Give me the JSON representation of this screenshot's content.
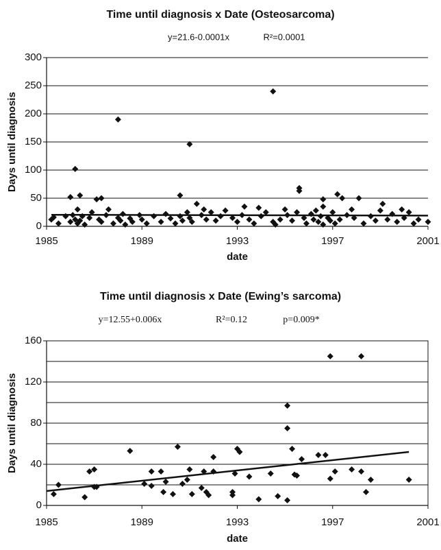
{
  "chart_data": [
    {
      "type": "scatter",
      "title": "Time until diagnosis x Date (Osteosarcoma)",
      "annotations": [
        "y=21.6-0.0001x",
        "R²=0.0001"
      ],
      "xlabel": "date",
      "ylabel": "Days until diagnosis",
      "xlim": [
        1985,
        2001
      ],
      "xticks": [
        1985,
        1989,
        1993,
        1997,
        2001
      ],
      "ylim": [
        0,
        300
      ],
      "yticks": [
        0,
        50,
        100,
        150,
        200,
        250,
        300
      ],
      "grid_lines": [
        50,
        100,
        150,
        200,
        250,
        300
      ],
      "frame": false,
      "color": "#111111",
      "points": {
        "x": [
          1985.2,
          1985.3,
          1985.5,
          1985.8,
          1986.0,
          1986.0,
          1986.1,
          1986.2,
          1986.3,
          1986.3,
          1986.4,
          1986.5,
          1986.6,
          1986.8,
          1986.9,
          1987.1,
          1987.2,
          1987.3,
          1987.5,
          1987.6,
          1987.8,
          1988.0,
          1988.1,
          1988.2,
          1988.3,
          1988.5,
          1988.6,
          1988.9,
          1989.0,
          1989.2,
          1989.5,
          1989.8,
          1990.0,
          1990.2,
          1990.4,
          1990.6,
          1990.7,
          1990.9,
          1991.0,
          1991.1,
          1991.3,
          1991.5,
          1991.6,
          1991.7,
          1991.9,
          1992.1,
          1992.3,
          1992.5,
          1992.8,
          1993.0,
          1993.2,
          1993.3,
          1993.5,
          1993.7,
          1993.9,
          1994.0,
          1994.2,
          1994.5,
          1994.6,
          1994.8,
          1995.0,
          1995.1,
          1995.3,
          1995.5,
          1995.6,
          1995.6,
          1995.8,
          1995.9,
          1996.1,
          1996.2,
          1996.3,
          1996.4,
          1996.5,
          1996.6,
          1996.6,
          1996.8,
          1996.9,
          1997.0,
          1997.1,
          1997.2,
          1997.3,
          1997.4,
          1997.6,
          1997.8,
          1997.9,
          1998.1,
          1998.3,
          1998.6,
          1998.8,
          1999.0,
          1999.1,
          1999.3,
          1999.5,
          1999.7,
          1999.9,
          2000.0,
          2000.2,
          2000.4,
          2000.6,
          2001.0,
          1986.2,
          1988.0,
          1991.0,
          1994.5,
          1986.4,
          1990.6,
          1987.3,
          1996.6
        ],
        "y": [
          12,
          16,
          5,
          18,
          52,
          8,
          20,
          12,
          30,
          5,
          10,
          18,
          3,
          15,
          25,
          48,
          12,
          8,
          20,
          30,
          5,
          15,
          10,
          22,
          3,
          14,
          8,
          20,
          12,
          5,
          18,
          8,
          22,
          14,
          5,
          18,
          10,
          25,
          15,
          8,
          40,
          20,
          30,
          12,
          25,
          10,
          18,
          28,
          15,
          8,
          20,
          35,
          12,
          5,
          33,
          18,
          25,
          8,
          3,
          12,
          30,
          20,
          10,
          25,
          68,
          63,
          15,
          5,
          22,
          12,
          28,
          8,
          18,
          35,
          3,
          15,
          10,
          25,
          5,
          57,
          12,
          50,
          20,
          30,
          15,
          50,
          5,
          18,
          10,
          28,
          40,
          12,
          22,
          8,
          30,
          15,
          25,
          5,
          12,
          8,
          102,
          190,
          146,
          240,
          55,
          55,
          50,
          48
        ]
      },
      "trend": {
        "x": [
          1985.2,
          2001.0
        ],
        "y": [
          20.5,
          19
        ]
      }
    },
    {
      "type": "scatter",
      "title": "Time until diagnosis x Date (Ewing’s sarcoma)",
      "annotations": [
        "y=12.55+0.006x",
        "R²=0.12",
        "p=0.009*"
      ],
      "xlabel": "date",
      "ylabel": "Days until diagnosis",
      "xlim": [
        1985,
        2001
      ],
      "xticks": [
        1985,
        1989,
        1993,
        1997,
        2001
      ],
      "ylim": [
        0,
        160
      ],
      "yticks": [
        0,
        40,
        80,
        120,
        160
      ],
      "grid_lines": [
        20,
        40,
        60,
        80,
        100,
        120,
        140
      ],
      "frame": true,
      "color": "#111111",
      "points": {
        "x": [
          1985.3,
          1985.5,
          1986.6,
          1986.8,
          1987.0,
          1987.0,
          1987.1,
          1988.5,
          1989.1,
          1989.4,
          1989.4,
          1989.8,
          1989.9,
          1990.0,
          1990.3,
          1990.5,
          1990.7,
          1990.9,
          1991.0,
          1991.1,
          1991.5,
          1991.6,
          1991.7,
          1991.8,
          1992.0,
          1992.0,
          1992.8,
          1992.9,
          1993.0,
          1993.1,
          1992.8,
          1993.5,
          1993.9,
          1994.4,
          1994.7,
          1995.1,
          1995.1,
          1995.1,
          1995.3,
          1995.4,
          1995.5,
          1995.7,
          1996.4,
          1996.7,
          1996.9,
          1996.9,
          1997.1,
          1997.8,
          1998.2,
          1998.2,
          1998.4,
          1998.6,
          2000.2
        ],
        "y": [
          11,
          20,
          8,
          33,
          35,
          18,
          18,
          53,
          21,
          19,
          33,
          33,
          13,
          23,
          11,
          57,
          21,
          25,
          35,
          11,
          17,
          33,
          13,
          10,
          33,
          47,
          13,
          31,
          55,
          52,
          10,
          28,
          6,
          31,
          9,
          97,
          75,
          5,
          55,
          30,
          29,
          45,
          49,
          49,
          145,
          26,
          33,
          35,
          145,
          33,
          13,
          25,
          25
        ]
      },
      "trend": {
        "x": [
          1985.0,
          2000.2
        ],
        "y": [
          14,
          52
        ]
      }
    }
  ]
}
